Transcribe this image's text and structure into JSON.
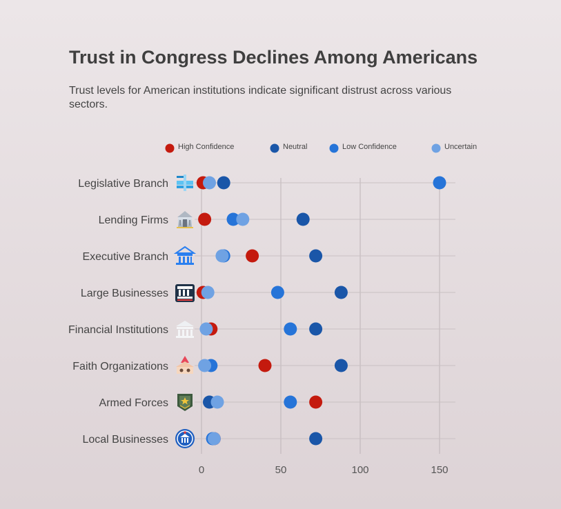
{
  "title": "Trust in Congress Declines Among Americans",
  "subtitle": "Trust levels for American institutions indicate significant distrust across various sectors.",
  "colors": {
    "High Confidence": "#c41a0e",
    "Neutral": "#1a56a8",
    "Low Confidence": "#2674d8",
    "Uncertain": "#6fa2e3"
  },
  "chart_data": {
    "type": "scatter",
    "title": "Trust in Congress Declines Among Americans",
    "subtitle": "Trust levels for American institutions indicate significant distrust across various sectors.",
    "categories": [
      "Legislative Branch",
      "Lending Firms",
      "Executive Branch",
      "Large Businesses",
      "Financial Institutions",
      "Faith Organizations",
      "Armed Forces",
      "Local Businesses"
    ],
    "category_icons": [
      "government-building-icon",
      "bank-icon",
      "classical-building-icon",
      "institution-icon",
      "columns-building-icon",
      "place-of-worship-icon",
      "military-badge-icon",
      "local-shop-icon"
    ],
    "series": [
      {
        "name": "High Confidence",
        "values": [
          1,
          2,
          32,
          1,
          6,
          40,
          72,
          8
        ]
      },
      {
        "name": "Neutral",
        "values": [
          14,
          64,
          72,
          88,
          72,
          88,
          5,
          72
        ]
      },
      {
        "name": "Low Confidence",
        "values": [
          150,
          20,
          14,
          48,
          56,
          6,
          56,
          7
        ]
      },
      {
        "name": "Uncertain",
        "values": [
          5,
          26,
          13,
          4,
          3,
          2,
          10,
          8
        ]
      }
    ],
    "xticks": [
      0,
      50,
      100,
      150
    ],
    "xlim": [
      -10,
      160
    ],
    "xlabel": "",
    "ylabel": "",
    "grid": true,
    "legend_position": "top"
  }
}
